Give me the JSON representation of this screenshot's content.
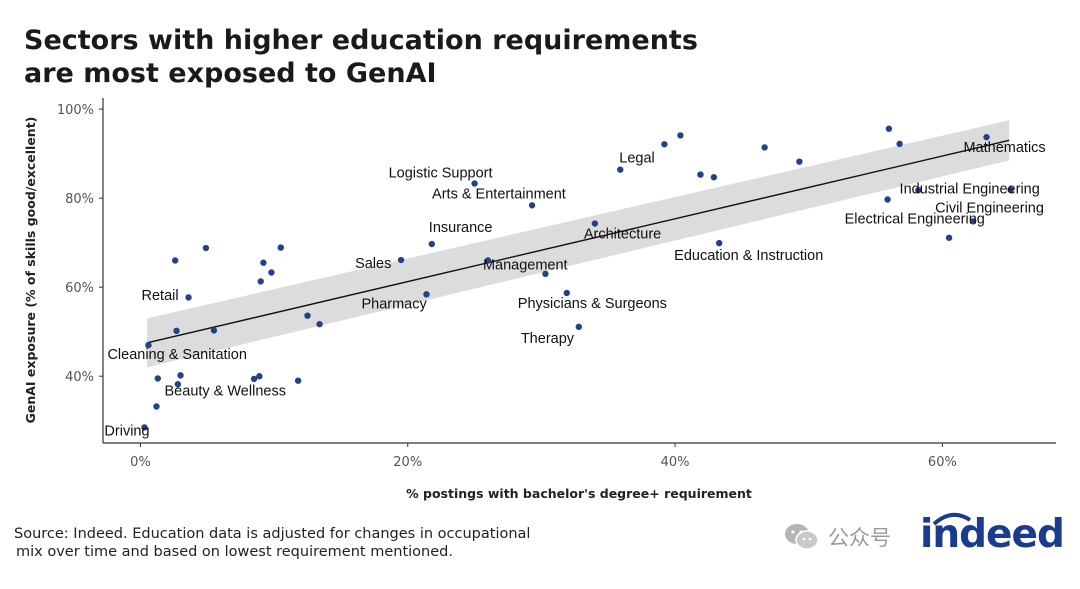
{
  "title_lines": [
    "Sectors with higher education requirements",
    "are most exposed to GenAI"
  ],
  "source_lines": [
    "Source: Indeed. Education data is adjusted for changes in occupational",
    "mix over time and based on lowest requirement mentioned."
  ],
  "watermark_text": "公众号",
  "logo_text": "indeed",
  "colors": {
    "point": "#24418f",
    "trend": "#111111",
    "band": "#dcdcdc",
    "title": "#1a1a1a",
    "logo": "#1a3c8f"
  },
  "icons": [
    "wechat-icon"
  ],
  "chart_data": {
    "type": "scatter",
    "xlabel": "% postings with bachelor's degree+ requirement",
    "ylabel": "GenAI exposure (% of skills good/excellent)",
    "xlim": [
      -2.8,
      68.5
    ],
    "ylim": [
      25,
      102.5
    ],
    "xticks": [
      0,
      20,
      40,
      60
    ],
    "xtick_labels": [
      "0%",
      "20%",
      "40%",
      "60%"
    ],
    "yticks": [
      40,
      60,
      80,
      100
    ],
    "ytick_labels": [
      "40%",
      "60%",
      "80%",
      "100%"
    ],
    "grid": false,
    "trend": {
      "x": [
        0.5,
        65
      ],
      "y": [
        47.5,
        93
      ]
    },
    "confidence_band": {
      "x": [
        0.5,
        65
      ],
      "upper": [
        53,
        97.5
      ],
      "lower": [
        42,
        88.5
      ]
    },
    "points": [
      {
        "x": 0.3,
        "y": 28.5,
        "label": "Driving"
      },
      {
        "x": 0.6,
        "y": 47,
        "label": "Cleaning & Sanitation"
      },
      {
        "x": 1.2,
        "y": 33.2
      },
      {
        "x": 1.3,
        "y": 39.5
      },
      {
        "x": 2.6,
        "y": 66
      },
      {
        "x": 2.7,
        "y": 50.2,
        "label": "Retail"
      },
      {
        "x": 2.8,
        "y": 38.2
      },
      {
        "x": 3.0,
        "y": 40.2,
        "label": "Beauty & Wellness"
      },
      {
        "x": 3.6,
        "y": 57.7
      },
      {
        "x": 4.9,
        "y": 68.8
      },
      {
        "x": 5.5,
        "y": 50.3
      },
      {
        "x": 8.5,
        "y": 39.4
      },
      {
        "x": 8.9,
        "y": 40
      },
      {
        "x": 9.0,
        "y": 61.3
      },
      {
        "x": 9.2,
        "y": 65.5
      },
      {
        "x": 9.8,
        "y": 63.3
      },
      {
        "x": 10.5,
        "y": 68.9
      },
      {
        "x": 11.8,
        "y": 39
      },
      {
        "x": 12.5,
        "y": 53.6
      },
      {
        "x": 13.4,
        "y": 51.7
      },
      {
        "x": 19.5,
        "y": 66.1,
        "label": "Sales"
      },
      {
        "x": 21.4,
        "y": 58.4,
        "label": "Pharmacy"
      },
      {
        "x": 21.8,
        "y": 69.7,
        "label": "Insurance"
      },
      {
        "x": 25.0,
        "y": 83.3,
        "label": "Logistic Support"
      },
      {
        "x": 26.0,
        "y": 66,
        "label": "Management"
      },
      {
        "x": 29.3,
        "y": 78.4,
        "label": "Arts & Entertainment"
      },
      {
        "x": 30.3,
        "y": 63
      },
      {
        "x": 31.9,
        "y": 58.7,
        "label": "Physicians & Surgeons"
      },
      {
        "x": 32.8,
        "y": 51.1,
        "label": "Therapy"
      },
      {
        "x": 34.0,
        "y": 74.3,
        "label": "Architecture"
      },
      {
        "x": 35.9,
        "y": 86.4,
        "label": "Legal"
      },
      {
        "x": 39.2,
        "y": 92.1
      },
      {
        "x": 40.4,
        "y": 94.1
      },
      {
        "x": 41.9,
        "y": 85.3
      },
      {
        "x": 42.9,
        "y": 84.7
      },
      {
        "x": 43.3,
        "y": 69.9,
        "label": "Education & Instruction"
      },
      {
        "x": 46.7,
        "y": 91.4
      },
      {
        "x": 49.3,
        "y": 88.2
      },
      {
        "x": 55.9,
        "y": 79.7,
        "label": "Electrical Engineering"
      },
      {
        "x": 56.0,
        "y": 95.6
      },
      {
        "x": 56.8,
        "y": 92.2
      },
      {
        "x": 58.2,
        "y": 81.8
      },
      {
        "x": 60.5,
        "y": 71.1
      },
      {
        "x": 62.3,
        "y": 74.8,
        "label": "Civil Engineering"
      },
      {
        "x": 63.3,
        "y": 93.7,
        "label": "Mathematics"
      },
      {
        "x": 65.1,
        "y": 81.9,
        "label": "Industrial Engineering"
      }
    ]
  }
}
